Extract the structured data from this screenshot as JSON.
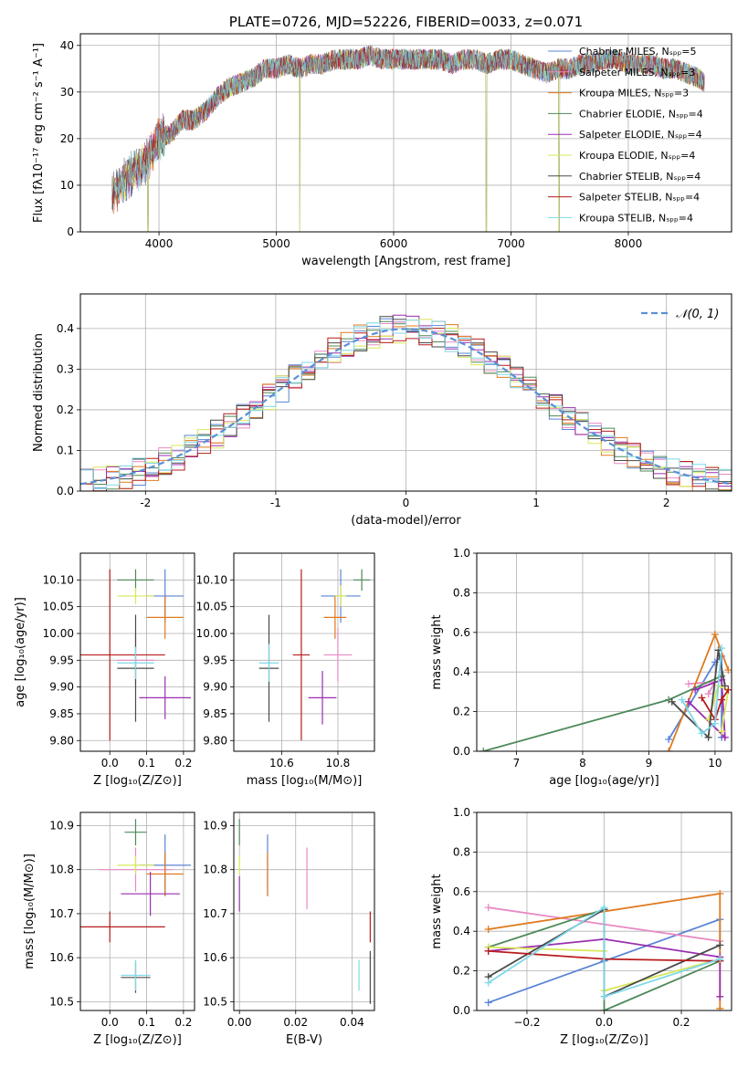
{
  "colors": {
    "chabrier_miles": "#5b84d6",
    "salpeter_miles": "#e88ac4",
    "kroupa_miles": "#e07a1f",
    "chabrier_elodie": "#4f8a5a",
    "salpeter_elodie": "#9a2fb0",
    "kroupa_elodie": "#d8e85a",
    "chabrier_stelib": "#4a4a4a",
    "salpeter_stelib": "#b81c1c",
    "kroupa_stelib": "#7ed8e8",
    "data_spectrum": "#808080",
    "normal_curve": "#5b8fd6"
  },
  "chart_data": [
    {
      "type": "line",
      "title": "PLATE=0726, MJD=52226, FIBERID=0033, z=0.071",
      "xlabel": "wavelength [Angstrom, rest frame]",
      "ylabel": "Flux [fλ10⁻¹⁷ erg cm⁻² s⁻¹ A⁻¹]",
      "xlim": [
        3330,
        8880
      ],
      "ylim": [
        0,
        42.5
      ],
      "xticks": [
        4000,
        5000,
        6000,
        7000,
        8000
      ],
      "yticks": [
        0,
        10,
        20,
        30,
        40
      ],
      "legend_position": "upper-right",
      "legend": [
        {
          "label": "Chabrier MILES, Nₛₚₚ=5",
          "color_key": "chabrier_miles"
        },
        {
          "label": "Salpeter MILES, Nₛₚₚ=3",
          "color_key": "salpeter_miles"
        },
        {
          "label": "Kroupa MILES, Nₛₚₚ=3",
          "color_key": "kroupa_miles"
        },
        {
          "label": "Chabrier ELODIE, Nₛₚₚ=4",
          "color_key": "chabrier_elodie"
        },
        {
          "label": "Salpeter ELODIE, Nₛₚₚ=4",
          "color_key": "salpeter_elodie"
        },
        {
          "label": "Kroupa ELODIE, Nₛₚₚ=4",
          "color_key": "kroupa_elodie"
        },
        {
          "label": "Chabrier STELIB, Nₛₚₚ=4",
          "color_key": "chabrier_stelib"
        },
        {
          "label": "Salpeter STELIB, Nₛₚₚ=4",
          "color_key": "salpeter_stelib"
        },
        {
          "label": "Kroupa STELIB, Nₛₚₚ=4",
          "color_key": "kroupa_stelib"
        }
      ],
      "spectrum_trend": [
        [
          3600,
          8
        ],
        [
          3700,
          11
        ],
        [
          3800,
          13
        ],
        [
          3900,
          15
        ],
        [
          4000,
          20
        ],
        [
          4100,
          21
        ],
        [
          4200,
          24
        ],
        [
          4300,
          24
        ],
        [
          4400,
          26
        ],
        [
          4500,
          29
        ],
        [
          4600,
          31
        ],
        [
          4700,
          32
        ],
        [
          4800,
          33
        ],
        [
          4900,
          35
        ],
        [
          5000,
          35
        ],
        [
          5100,
          36
        ],
        [
          5200,
          35
        ],
        [
          5300,
          36
        ],
        [
          5400,
          36
        ],
        [
          5500,
          37
        ],
        [
          5600,
          37
        ],
        [
          5700,
          37
        ],
        [
          5800,
          38
        ],
        [
          5900,
          37
        ],
        [
          6000,
          37
        ],
        [
          6100,
          37
        ],
        [
          6200,
          37
        ],
        [
          6300,
          37
        ],
        [
          6400,
          37
        ],
        [
          6500,
          36
        ],
        [
          6600,
          37
        ],
        [
          6700,
          37
        ],
        [
          6800,
          36
        ],
        [
          6900,
          37
        ],
        [
          7000,
          37
        ],
        [
          7100,
          36
        ],
        [
          7200,
          35
        ],
        [
          7300,
          34
        ],
        [
          7400,
          35
        ],
        [
          7500,
          35
        ],
        [
          7600,
          36
        ],
        [
          7700,
          36
        ],
        [
          7800,
          37
        ],
        [
          7900,
          37
        ],
        [
          8000,
          36
        ],
        [
          8100,
          36
        ],
        [
          8200,
          36
        ],
        [
          8300,
          35
        ],
        [
          8400,
          35
        ],
        [
          8500,
          34
        ],
        [
          8600,
          33
        ],
        [
          8650,
          32
        ]
      ],
      "drops": [
        [
          3905,
          0
        ],
        [
          6790,
          0
        ],
        [
          7410,
          0
        ],
        [
          5200,
          0
        ]
      ]
    },
    {
      "type": "histogram",
      "xlabel": "(data-model)/error",
      "ylabel": "Normed distribution",
      "xlim": [
        -2.5,
        2.5
      ],
      "ylim": [
        0,
        0.485
      ],
      "xticks": [
        -2,
        -1,
        0,
        1,
        2
      ],
      "yticks": [
        0.0,
        0.1,
        0.2,
        0.3,
        0.4
      ],
      "legend_position": "upper-right",
      "curve_label": "𝒩(0, 1)",
      "bin_width": 0.1
    },
    {
      "type": "errorbar",
      "xlabel": "Z [log₁₀(Z/Z⊙)]",
      "ylabel": "age  [log₁₀(age/yr)]",
      "xlim": [
        -0.08,
        0.23
      ],
      "ylim": [
        9.78,
        10.15
      ],
      "xticks": [
        0.0,
        0.1,
        0.2
      ],
      "yticks": [
        9.8,
        9.85,
        9.9,
        9.95,
        10.0,
        10.05,
        10.1
      ],
      "points": [
        {
          "s": "chabrier_miles",
          "x": 0.15,
          "xe": 0.05,
          "y": 10.07,
          "ye": 0.05
        },
        {
          "s": "salpeter_miles",
          "x": 0.07,
          "xe": 0.05,
          "y": 9.95,
          "ye": 0.05
        },
        {
          "s": "kroupa_miles",
          "x": 0.15,
          "xe": 0.05,
          "y": 10.03,
          "ye": 0.04
        },
        {
          "s": "chabrier_elodie",
          "x": 0.07,
          "xe": 0.05,
          "y": 10.1,
          "ye": 0.02
        },
        {
          "s": "salpeter_elodie",
          "x": 0.15,
          "xe": 0.07,
          "y": 9.88,
          "ye": 0.04
        },
        {
          "s": "kroupa_elodie",
          "x": 0.07,
          "xe": 0.05,
          "y": 10.07,
          "ye": 0.015
        },
        {
          "s": "chabrier_stelib",
          "x": 0.07,
          "xe": 0.05,
          "y": 9.935,
          "ye": 0.1
        },
        {
          "s": "salpeter_stelib",
          "x": 0.0,
          "xe": 0.15,
          "y": 9.96,
          "ye": 0.16
        },
        {
          "s": "kroupa_stelib",
          "x": 0.07,
          "xe": 0.05,
          "y": 9.945,
          "ye": 0.03
        }
      ]
    },
    {
      "type": "errorbar",
      "xlabel": "mass [log₁₀(M/M⊙)]",
      "xlim": [
        10.43,
        10.93
      ],
      "ylim": [
        9.78,
        10.15
      ],
      "xticks": [
        10.6,
        10.8
      ],
      "yticks": [
        9.8,
        9.85,
        9.9,
        9.95,
        10.0,
        10.05,
        10.1
      ],
      "points": [
        {
          "s": "chabrier_miles",
          "x": 10.81,
          "xe": 0.07,
          "y": 10.07,
          "ye": 0.05
        },
        {
          "s": "salpeter_miles",
          "x": 10.8,
          "xe": 0.05,
          "y": 9.96,
          "ye": 0.05
        },
        {
          "s": "kroupa_miles",
          "x": 10.79,
          "xe": 0.04,
          "y": 10.03,
          "ye": 0.04
        },
        {
          "s": "chabrier_elodie",
          "x": 10.885,
          "xe": 0.03,
          "y": 10.1,
          "ye": 0.02
        },
        {
          "s": "salpeter_elodie",
          "x": 10.745,
          "xe": 0.05,
          "y": 9.88,
          "ye": 0.05
        },
        {
          "s": "kroupa_elodie",
          "x": 10.81,
          "xe": 0.02,
          "y": 10.07,
          "ye": 0.02
        },
        {
          "s": "chabrier_stelib",
          "x": 10.555,
          "xe": 0.035,
          "y": 9.935,
          "ye": 0.1
        },
        {
          "s": "salpeter_stelib",
          "x": 10.67,
          "xe": 0.03,
          "y": 9.96,
          "ye": 0.16
        },
        {
          "s": "kroupa_stelib",
          "x": 10.555,
          "xe": 0.035,
          "y": 9.945,
          "ye": 0.035
        }
      ]
    },
    {
      "type": "line",
      "xlabel": "age  [log₁₀(age/yr)]",
      "ylabel": "mass weight",
      "xlim": [
        6.4,
        10.25
      ],
      "ylim": [
        0.0,
        1.0
      ],
      "xticks": [
        7,
        8,
        9,
        10
      ],
      "yticks": [
        0.0,
        0.2,
        0.4,
        0.6,
        0.8,
        1.0
      ],
      "series": [
        {
          "s": "chabrier_miles",
          "points": [
            [
              9.3,
              0.06
            ],
            [
              10.0,
              0.45
            ],
            [
              10.1,
              0.48
            ],
            [
              10.1,
              0.07
            ]
          ]
        },
        {
          "s": "salpeter_miles",
          "points": [
            [
              9.6,
              0.34
            ],
            [
              10.0,
              0.35
            ],
            [
              9.9,
              0.29
            ]
          ]
        },
        {
          "s": "kroupa_miles",
          "points": [
            [
              9.3,
              0.0
            ],
            [
              10.0,
              0.59
            ],
            [
              10.2,
              0.41
            ]
          ]
        },
        {
          "s": "chabrier_elodie",
          "points": [
            [
              6.5,
              0.0
            ],
            [
              9.3,
              0.26
            ],
            [
              10.1,
              0.38
            ],
            [
              10.1,
              0.36
            ]
          ]
        },
        {
          "s": "salpeter_elodie",
          "points": [
            [
              9.7,
              0.31
            ],
            [
              10.1,
              0.36
            ],
            [
              10.15,
              0.07
            ],
            [
              9.6,
              0.25
            ]
          ]
        },
        {
          "s": "kroupa_elodie",
          "points": [
            [
              9.9,
              0.16
            ],
            [
              10.05,
              0.33
            ],
            [
              10.2,
              0.31
            ],
            [
              10.1,
              0.1
            ]
          ]
        },
        {
          "s": "chabrier_stelib",
          "points": [
            [
              9.35,
              0.25
            ],
            [
              9.9,
              0.07
            ],
            [
              10.05,
              0.51
            ],
            [
              10.15,
              0.33
            ]
          ]
        },
        {
          "s": "salpeter_stelib",
          "points": [
            [
              9.8,
              0.27
            ],
            [
              10.0,
              0.16
            ],
            [
              10.1,
              0.26
            ],
            [
              10.2,
              0.31
            ]
          ]
        },
        {
          "s": "kroupa_stelib",
          "points": [
            [
              9.5,
              0.26
            ],
            [
              9.8,
              0.09
            ],
            [
              10.0,
              0.14
            ],
            [
              10.1,
              0.52
            ]
          ]
        }
      ]
    },
    {
      "type": "errorbar",
      "xlabel": "Z [log₁₀(Z/Z⊙)]",
      "ylabel": "mass [log₁₀(M/M⊙)]",
      "xlim": [
        -0.08,
        0.23
      ],
      "ylim": [
        10.48,
        10.93
      ],
      "xticks": [
        0.0,
        0.1,
        0.2
      ],
      "yticks": [
        10.5,
        10.6,
        10.7,
        10.8,
        10.9
      ],
      "points": [
        {
          "s": "chabrier_miles",
          "x": 0.15,
          "xe": 0.07,
          "y": 10.81,
          "ye": 0.07
        },
        {
          "s": "salpeter_miles",
          "x": 0.07,
          "xe": 0.1,
          "y": 10.8,
          "ye": 0.05
        },
        {
          "s": "kroupa_miles",
          "x": 0.15,
          "xe": 0.05,
          "y": 10.79,
          "ye": 0.05
        },
        {
          "s": "chabrier_elodie",
          "x": 0.07,
          "xe": 0.03,
          "y": 10.885,
          "ye": 0.03
        },
        {
          "s": "salpeter_elodie",
          "x": 0.11,
          "xe": 0.08,
          "y": 10.745,
          "ye": 0.05
        },
        {
          "s": "kroupa_elodie",
          "x": 0.07,
          "xe": 0.05,
          "y": 10.81,
          "ye": 0.02
        },
        {
          "s": "chabrier_stelib",
          "x": 0.07,
          "xe": 0.04,
          "y": 10.555,
          "ye": 0.035
        },
        {
          "s": "salpeter_stelib",
          "x": 0.0,
          "xe": 0.15,
          "y": 10.67,
          "ye": 0.035
        },
        {
          "s": "kroupa_stelib",
          "x": 0.07,
          "xe": 0.04,
          "y": 10.56,
          "ye": 0.035
        }
      ]
    },
    {
      "type": "errorbar",
      "xlabel": "E(B-V)",
      "xlim": [
        -0.002,
        0.048
      ],
      "ylim": [
        10.48,
        10.93
      ],
      "xticks": [
        0.0,
        0.02,
        0.04
      ],
      "yticks": [
        10.5,
        10.6,
        10.7,
        10.8,
        10.9
      ],
      "points": [
        {
          "s": "chabrier_miles",
          "x": 0.01,
          "xe": 0,
          "y": 10.81,
          "ye": 0.07
        },
        {
          "s": "salpeter_miles",
          "x": 0.024,
          "xe": 0,
          "y": 10.78,
          "ye": 0.07
        },
        {
          "s": "kroupa_miles",
          "x": 0.01,
          "xe": 0,
          "y": 10.79,
          "ye": 0.05
        },
        {
          "s": "chabrier_elodie",
          "x": 0.0,
          "xe": 0,
          "y": 10.885,
          "ye": 0.03
        },
        {
          "s": "salpeter_elodie",
          "x": 0.0,
          "xe": 0,
          "y": 10.745,
          "ye": 0.04
        },
        {
          "s": "kroupa_elodie",
          "x": 0.0,
          "xe": 0,
          "y": 10.81,
          "ye": 0.02
        },
        {
          "s": "chabrier_stelib",
          "x": 0.0465,
          "xe": 0,
          "y": 10.555,
          "ye": 0.06
        },
        {
          "s": "salpeter_stelib",
          "x": 0.0465,
          "xe": 0,
          "y": 10.67,
          "ye": 0.035
        },
        {
          "s": "kroupa_stelib",
          "x": 0.0425,
          "xe": 0,
          "y": 10.56,
          "ye": 0.035
        }
      ]
    },
    {
      "type": "line",
      "xlabel": "Z [log₁₀(Z/Z⊙)]",
      "ylabel": "mass weight",
      "xlim": [
        -0.33,
        0.33
      ],
      "ylim": [
        0.0,
        1.0
      ],
      "xticks": [
        -0.2,
        0.0,
        0.2
      ],
      "yticks": [
        0.0,
        0.2,
        0.4,
        0.6,
        0.8,
        1.0
      ],
      "series": [
        {
          "s": "chabrier_miles",
          "points": [
            [
              -0.3,
              0.04
            ],
            [
              0.0,
              0.25
            ],
            [
              0.3,
              0.46
            ],
            [
              0.3,
              0.26
            ]
          ]
        },
        {
          "s": "salpeter_miles",
          "points": [
            [
              -0.3,
              0.52
            ],
            [
              0.3,
              0.35
            ]
          ]
        },
        {
          "s": "kroupa_miles",
          "points": [
            [
              -0.3,
              0.41
            ],
            [
              0.3,
              0.59
            ],
            [
              0.3,
              0.01
            ]
          ]
        },
        {
          "s": "chabrier_elodie",
          "points": [
            [
              -0.3,
              0.32
            ],
            [
              0.0,
              0.51
            ],
            [
              0.0,
              0.0
            ],
            [
              0.3,
              0.25
            ]
          ]
        },
        {
          "s": "salpeter_elodie",
          "points": [
            [
              -0.3,
              0.3
            ],
            [
              0.0,
              0.36
            ],
            [
              0.3,
              0.27
            ],
            [
              0.3,
              0.07
            ]
          ]
        },
        {
          "s": "kroupa_elodie",
          "points": [
            [
              -0.3,
              0.32
            ],
            [
              0.0,
              0.3
            ],
            [
              0.0,
              0.1
            ],
            [
              0.3,
              0.26
            ]
          ]
        },
        {
          "s": "chabrier_stelib",
          "points": [
            [
              -0.3,
              0.17
            ],
            [
              0.0,
              0.51
            ],
            [
              0.0,
              0.07
            ],
            [
              0.3,
              0.33
            ]
          ]
        },
        {
          "s": "salpeter_stelib",
          "points": [
            [
              -0.3,
              0.3
            ],
            [
              0.0,
              0.26
            ],
            [
              0.3,
              0.25
            ]
          ]
        },
        {
          "s": "kroupa_stelib",
          "points": [
            [
              -0.3,
              0.14
            ],
            [
              0.0,
              0.52
            ],
            [
              0.0,
              0.07
            ],
            [
              0.3,
              0.26
            ]
          ]
        }
      ]
    }
  ]
}
